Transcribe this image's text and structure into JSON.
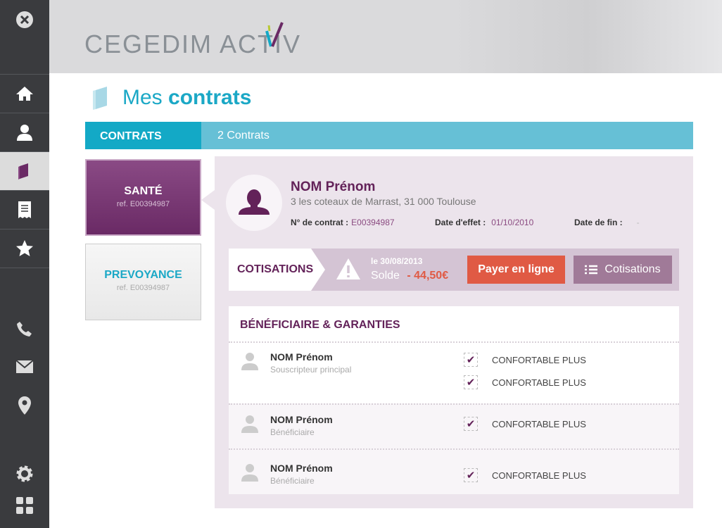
{
  "sidebar": {
    "items": [
      {
        "icon": "close-icon"
      },
      {
        "icon": "home-icon"
      },
      {
        "icon": "user-icon"
      },
      {
        "icon": "contract-book-icon",
        "active": true
      },
      {
        "icon": "receipt-icon"
      },
      {
        "icon": "star-icon"
      },
      {
        "icon": "phone-icon"
      },
      {
        "icon": "mail-icon"
      },
      {
        "icon": "location-pin-icon"
      },
      {
        "icon": "gear-icon"
      },
      {
        "icon": "grid-icon"
      }
    ]
  },
  "header": {
    "logo": "CEGEDIM ACTIV"
  },
  "page": {
    "title_light": "Mes",
    "title_bold": "contrats"
  },
  "tabs": {
    "active": "CONTRATS",
    "count": "2 Contrats"
  },
  "contracts": [
    {
      "name": "SANTÉ",
      "ref": "ref. E00394987",
      "selected": true
    },
    {
      "name": "PREVOYANCE",
      "ref": "ref. E00394987",
      "selected": false
    }
  ],
  "detail": {
    "name": "NOM Prénom",
    "address": "3 les coteaux de Marrast, 31 000 Toulouse",
    "contract_label": "N° de contrat :",
    "contract_value": "E00394987",
    "effect_label": "Date d'effet :",
    "effect_value": "01/10/2010",
    "end_label": "Date de fin :",
    "end_value": "-"
  },
  "cotisations": {
    "label": "COTISATIONS",
    "date": "le 30/08/2013",
    "solde_label": "Solde",
    "solde_value": "- 44,50€",
    "pay_button": "Payer en ligne",
    "list_button": "Cotisations"
  },
  "beneficiaries": {
    "title": "BÉNÉFICIAIRE & GARANTIES",
    "rows": [
      {
        "name": "NOM Prénom",
        "role": "Souscripteur principal",
        "guarantees": [
          "CONFORTABLE PLUS",
          "CONFORTABLE PLUS"
        ]
      },
      {
        "name": "NOM Prénom",
        "role": "Bénéficiaire",
        "guarantees": [
          "CONFORTABLE PLUS"
        ]
      },
      {
        "name": "NOM Prénom",
        "role": "Bénéficiaire",
        "guarantees": [
          "CONFORTABLE PLUS"
        ]
      }
    ]
  },
  "colors": {
    "sidebar": "#3a3b3e",
    "cyan": "#13a9c6",
    "purple": "#632259",
    "pay": "#e05a44",
    "list": "#a07a98"
  }
}
